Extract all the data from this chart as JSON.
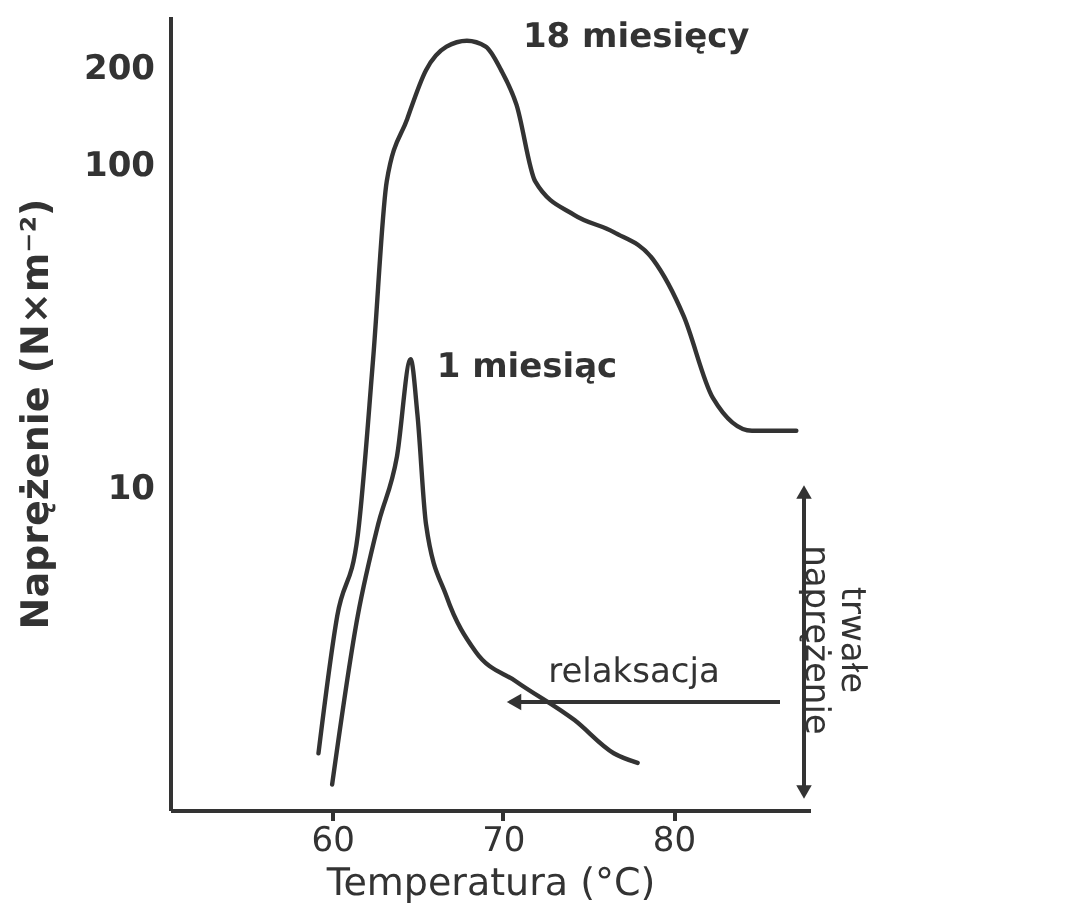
{
  "chart_data": {
    "type": "line",
    "xlabel": "Temperatura (°C)",
    "ylabel": "Naprężenie (N×m⁻²)",
    "xlim": [
      50.5,
      88
    ],
    "xticks": [
      60,
      70,
      80
    ],
    "ylim": [
      1,
      290
    ],
    "yticks": [
      10,
      100,
      200
    ],
    "log": true,
    "legend": false,
    "grid": false,
    "marker": "none",
    "line_style": "solid",
    "series": [
      {
        "name": "18 miesięcy",
        "color": "#333333",
        "x": [
          59.2,
          60.3,
          61.5,
          62.4,
          63.2,
          64.4,
          65.5,
          66.7,
          67.9,
          69.0,
          69.9,
          70.8,
          71.9,
          74.2,
          76.5,
          78.8,
          80.6,
          82.3,
          84.6,
          87.2
        ],
        "values": [
          1.5,
          4.0,
          7.1,
          25,
          89,
          139,
          197,
          233,
          243,
          233,
          197,
          154,
          89,
          70,
          62,
          51,
          34,
          19,
          15,
          15
        ]
      },
      {
        "name": "1 miesiąc",
        "color": "#333333",
        "x": [
          60.0,
          61.5,
          62.7,
          63.8,
          64.6,
          65.0,
          65.5,
          66.7,
          68.4,
          70.8,
          74.2,
          76.5,
          77.9
        ],
        "values": [
          1.2,
          4.0,
          7.7,
          12.5,
          25,
          16.8,
          7.7,
          4.6,
          3.1,
          2.5,
          1.9,
          1.5,
          1.4
        ]
      }
    ],
    "annotations": [
      "relaksacja",
      "trwałe naprężenie"
    ]
  }
}
